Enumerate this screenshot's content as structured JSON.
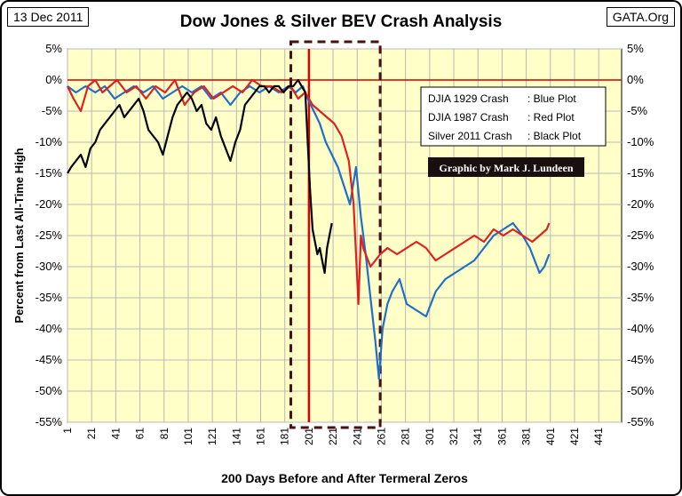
{
  "header": {
    "date": "13 Dec 2011",
    "source": "GATA.Org"
  },
  "chart_data": {
    "type": "line",
    "title": "Dow Jones & Silver BEV Crash Analysis",
    "xlabel": "200 Days Before and After Termeral Zeros",
    "ylabel": "Percent from Last All-Time High",
    "xlim": [
      1,
      460
    ],
    "ylim": [
      -55,
      5
    ],
    "x_ticks": [
      1,
      21,
      41,
      61,
      81,
      101,
      121,
      141,
      161,
      181,
      201,
      221,
      241,
      261,
      281,
      301,
      321,
      341,
      361,
      381,
      401,
      421,
      441
    ],
    "y_ticks": [
      5,
      0,
      -5,
      -10,
      -15,
      -20,
      -25,
      -30,
      -35,
      -40,
      -45,
      -50,
      -55
    ],
    "y_tick_labels": [
      "5%",
      "0%",
      "-5%",
      "-10%",
      "-15%",
      "-20%",
      "-25%",
      "-30%",
      "-35%",
      "-40%",
      "-45%",
      "-50%",
      "-55%"
    ],
    "grid": true,
    "background": "#ffffc8",
    "legend": {
      "placement": "top-right",
      "lines": [
        {
          "name": "DJIA 1929 Crash",
          "desc": ": Blue Plot"
        },
        {
          "name": "DJIA 1987 Crash",
          "desc": ": Red Plot"
        },
        {
          "name": "Silver 2011 Crash",
          "desc": ": Black Plot"
        }
      ]
    },
    "credit": "Graphic by Mark J. Lundeen",
    "annotations": {
      "zero_day_line_x": 201,
      "crash_window": [
        186,
        260
      ]
    },
    "series": [
      {
        "name": "DJIA 1929 Crash",
        "color": "#1f6fc6",
        "x": [
          1,
          8,
          16,
          24,
          32,
          40,
          48,
          56,
          64,
          72,
          80,
          88,
          96,
          104,
          112,
          120,
          128,
          136,
          144,
          152,
          160,
          168,
          176,
          184,
          190,
          196,
          200,
          205,
          210,
          215,
          220,
          225,
          230,
          235,
          240,
          244,
          248,
          252,
          256,
          259,
          262,
          266,
          270,
          276,
          282,
          290,
          298,
          306,
          314,
          322,
          330,
          338,
          346,
          354,
          362,
          370,
          378,
          384,
          388,
          392,
          396,
          400
        ],
        "y": [
          -1,
          -2,
          -1,
          -2,
          -1,
          -3,
          -2,
          -1,
          -2,
          -1,
          -3,
          -2,
          -1,
          -2,
          -1,
          -3,
          -2,
          -4,
          -2,
          -1,
          -2,
          -1,
          -2,
          -1,
          -2,
          -1,
          -3,
          -5,
          -7,
          -10,
          -12,
          -14,
          -17,
          -20,
          -14,
          -22,
          -28,
          -35,
          -42,
          -48,
          -40,
          -36,
          -34,
          -32,
          -36,
          -37,
          -38,
          -34,
          -32,
          -31,
          -30,
          -29,
          -27,
          -25,
          -24,
          -23,
          -25,
          -27,
          -29,
          -31,
          -30,
          -28
        ]
      },
      {
        "name": "DJIA 1987 Crash",
        "color": "#e02020",
        "x": [
          1,
          6,
          12,
          18,
          24,
          30,
          36,
          42,
          50,
          58,
          66,
          74,
          82,
          90,
          98,
          106,
          114,
          122,
          130,
          138,
          146,
          154,
          162,
          170,
          178,
          186,
          192,
          198,
          204,
          210,
          216,
          222,
          228,
          234,
          238,
          242,
          244,
          246,
          248,
          252,
          256,
          260,
          266,
          274,
          282,
          290,
          298,
          306,
          314,
          322,
          330,
          338,
          346,
          354,
          362,
          370,
          378,
          386,
          392,
          398,
          400
        ],
        "y": [
          -1,
          -3,
          -5,
          -1,
          0,
          -2,
          -1,
          0,
          -2,
          -1,
          -3,
          -1,
          -2,
          0,
          -4,
          -2,
          -1,
          -3,
          -2,
          -1,
          -2,
          0,
          -1,
          -1,
          -2,
          -1,
          -3,
          -2,
          -4,
          -5,
          -6,
          -7,
          -9,
          -13,
          -20,
          -36,
          -25,
          -27,
          -28,
          -30,
          -29,
          -28,
          -27,
          -28,
          -27,
          -26,
          -27,
          -29,
          -28,
          -27,
          -26,
          -25,
          -26,
          -24,
          -25,
          -24,
          -25,
          -26,
          -25,
          -24,
          -23
        ]
      },
      {
        "name": "Silver 2011 Crash",
        "color": "#000000",
        "x": [
          1,
          4,
          8,
          12,
          16,
          20,
          24,
          28,
          32,
          36,
          40,
          44,
          48,
          52,
          56,
          60,
          64,
          68,
          72,
          76,
          80,
          84,
          88,
          92,
          96,
          100,
          104,
          108,
          112,
          116,
          120,
          124,
          128,
          132,
          136,
          140,
          144,
          148,
          152,
          156,
          160,
          164,
          168,
          172,
          176,
          180,
          184,
          188,
          192,
          195,
          198,
          200,
          202,
          204,
          206,
          208,
          210,
          212,
          214,
          216,
          218,
          220
        ],
        "y": [
          -15,
          -14,
          -13,
          -12,
          -14,
          -11,
          -10,
          -8,
          -7,
          -6,
          -5,
          -4,
          -6,
          -5,
          -4,
          -3,
          -5,
          -8,
          -9,
          -10,
          -12,
          -9,
          -6,
          -4,
          -3,
          -2,
          -3,
          -5,
          -4,
          -7,
          -8,
          -6,
          -9,
          -11,
          -13,
          -10,
          -8,
          -4,
          -3,
          -2,
          -1,
          -1,
          -2,
          -1,
          -1,
          -2,
          -1,
          -1,
          0,
          -1,
          -2,
          -10,
          -18,
          -24,
          -26,
          -28,
          -27,
          -29,
          -31,
          -27,
          -25,
          -23
        ]
      }
    ]
  }
}
